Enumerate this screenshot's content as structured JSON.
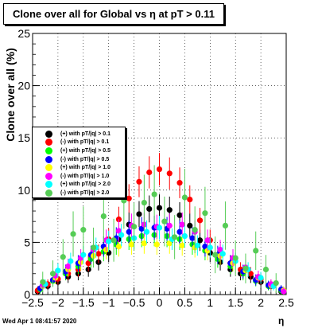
{
  "chart_data": {
    "type": "scatter",
    "title": "Clone  over all for Global vs   η at pT > 0.11",
    "xlabel": "η",
    "ylabel": "Clone  over all (%)",
    "xlim": [
      -2.5,
      2.5
    ],
    "ylim": [
      0,
      25
    ],
    "x_ticks": [
      "−2.5",
      "−2",
      "−1.5",
      "−1",
      "−0.5",
      "0",
      "0.5",
      "1",
      "1.5",
      "2",
      "2.5"
    ],
    "y_ticks": [
      "0",
      "5",
      "10",
      "15",
      "20",
      "25"
    ],
    "grid": true,
    "legend_position": "middle-left",
    "series": [
      {
        "name": "(+) with pT/|q| > 0.1",
        "color": "#000000",
        "x": [
          -2.4,
          -2.2,
          -2.0,
          -1.8,
          -1.6,
          -1.4,
          -1.2,
          -1.0,
          -0.8,
          -0.6,
          -0.4,
          -0.2,
          0.0,
          0.2,
          0.4,
          0.6,
          0.8,
          1.0,
          1.2,
          1.4,
          1.6,
          1.8,
          2.0,
          2.2,
          2.4
        ],
        "y": [
          0.3,
          0.8,
          1.2,
          1.7,
          2.0,
          2.4,
          3.1,
          4.0,
          5.3,
          6.7,
          7.7,
          8.2,
          8.3,
          8.1,
          7.6,
          6.6,
          5.2,
          4.0,
          3.1,
          2.4,
          2.0,
          1.7,
          1.2,
          0.8,
          0.3
        ]
      },
      {
        "name": "(-) with pT/|q| > 0.1",
        "color": "#ff0000",
        "x": [
          -2.4,
          -2.2,
          -2.0,
          -1.8,
          -1.6,
          -1.4,
          -1.2,
          -1.0,
          -0.8,
          -0.6,
          -0.4,
          -0.2,
          0.0,
          0.2,
          0.4,
          0.6,
          0.8,
          1.0,
          1.2,
          1.4,
          1.6,
          1.8,
          2.0,
          2.2,
          2.4
        ],
        "y": [
          0.4,
          1.0,
          1.5,
          2.0,
          2.4,
          3.0,
          3.9,
          5.3,
          7.2,
          9.2,
          10.8,
          11.7,
          12.0,
          11.6,
          10.7,
          9.1,
          7.1,
          5.2,
          3.9,
          3.0,
          2.4,
          2.0,
          1.5,
          1.0,
          0.4
        ]
      },
      {
        "name": "(+) with pT/|q| > 0.5",
        "color": "#00ff00",
        "x": [
          -2.35,
          -2.1,
          -1.85,
          -1.6,
          -1.35,
          -1.1,
          -0.85,
          -0.6,
          -0.35,
          -0.1,
          0.15,
          0.4,
          0.65,
          0.9,
          1.15,
          1.4,
          1.65,
          1.9,
          2.15,
          2.4
        ],
        "y": [
          0.5,
          1.3,
          2.0,
          2.7,
          3.4,
          4.1,
          4.8,
          5.3,
          5.6,
          5.7,
          5.6,
          5.3,
          4.8,
          4.2,
          3.4,
          2.7,
          2.0,
          1.3,
          0.8,
          0.4
        ]
      },
      {
        "name": "(-) with pT/|q| > 0.5",
        "color": "#0000ff",
        "x": [
          -2.35,
          -2.1,
          -1.85,
          -1.6,
          -1.35,
          -1.1,
          -0.85,
          -0.6,
          -0.35,
          -0.1,
          0.15,
          0.4,
          0.65,
          0.9,
          1.15,
          1.4,
          1.65,
          1.9,
          2.15,
          2.4
        ],
        "y": [
          0.6,
          1.4,
          2.2,
          3.0,
          3.8,
          4.6,
          5.4,
          6.0,
          6.3,
          6.4,
          6.3,
          6.0,
          5.4,
          4.6,
          3.8,
          3.0,
          2.2,
          1.4,
          0.9,
          0.5
        ]
      },
      {
        "name": "(+) with pT/|q| > 1.0",
        "color": "#ffff00",
        "x": [
          -2.3,
          -2.05,
          -1.8,
          -1.55,
          -1.3,
          -1.05,
          -0.8,
          -0.55,
          -0.3,
          -0.05,
          0.2,
          0.45,
          0.7,
          0.95,
          1.2,
          1.45,
          1.7,
          1.95,
          2.2,
          2.45
        ],
        "y": [
          0.8,
          1.6,
          2.4,
          3.1,
          3.7,
          4.3,
          4.6,
          4.8,
          4.9,
          4.8,
          4.9,
          4.7,
          4.5,
          4.2,
          3.7,
          3.0,
          2.3,
          1.6,
          0.9,
          0.4
        ]
      },
      {
        "name": "(-) with pT/|q| > 1.0",
        "color": "#ff00ff",
        "x": [
          -2.3,
          -2.05,
          -1.8,
          -1.55,
          -1.3,
          -1.05,
          -0.8,
          -0.55,
          -0.3,
          -0.05,
          0.2,
          0.45,
          0.7,
          0.95,
          1.2,
          1.45,
          1.7,
          1.95,
          2.2,
          2.45
        ],
        "y": [
          0.9,
          1.8,
          2.7,
          3.5,
          4.3,
          5.2,
          6.1,
          6.6,
          6.7,
          6.5,
          6.6,
          6.7,
          6.0,
          5.2,
          4.3,
          3.5,
          2.6,
          1.7,
          1.0,
          0.3
        ]
      },
      {
        "name": "(+) with pT/|q| > 2.0",
        "color": "#00ffff",
        "x": [
          -2.25,
          -2.0,
          -1.75,
          -1.5,
          -1.25,
          -1.0,
          -0.75,
          -0.5,
          -0.25,
          0.0,
          0.25,
          0.5,
          0.75,
          1.0,
          1.25,
          1.5,
          1.75,
          2.0,
          2.25
        ],
        "y": [
          1.0,
          2.3,
          3.2,
          3.8,
          4.5,
          5.1,
          5.7,
          5.4,
          6.0,
          6.4,
          5.3,
          5.6,
          4.7,
          4.5,
          3.9,
          3.2,
          2.4,
          1.6,
          0.8
        ]
      },
      {
        "name": "(-) with pT/|q| > 2.0",
        "color": "#55cc55",
        "x": [
          -2.3,
          -2.1,
          -1.9,
          -1.7,
          -1.5,
          -1.3,
          -1.1,
          -0.9,
          -0.7,
          -0.5,
          -0.3,
          -0.1,
          0.1,
          0.3,
          0.5,
          0.7,
          0.9,
          1.1,
          1.3,
          1.5,
          1.7,
          1.9,
          2.1,
          2.3
        ],
        "y": [
          1.2,
          2.0,
          3.6,
          5.8,
          6.2,
          4.5,
          7.5,
          5.2,
          9.0,
          6.5,
          8.8,
          9.6,
          7.0,
          5.5,
          9.3,
          6.2,
          7.8,
          3.8,
          6.6,
          3.5,
          2.5,
          4.2,
          2.4,
          1.1
        ]
      }
    ]
  },
  "footer": "Wed Apr  1 08:41:57 2020"
}
